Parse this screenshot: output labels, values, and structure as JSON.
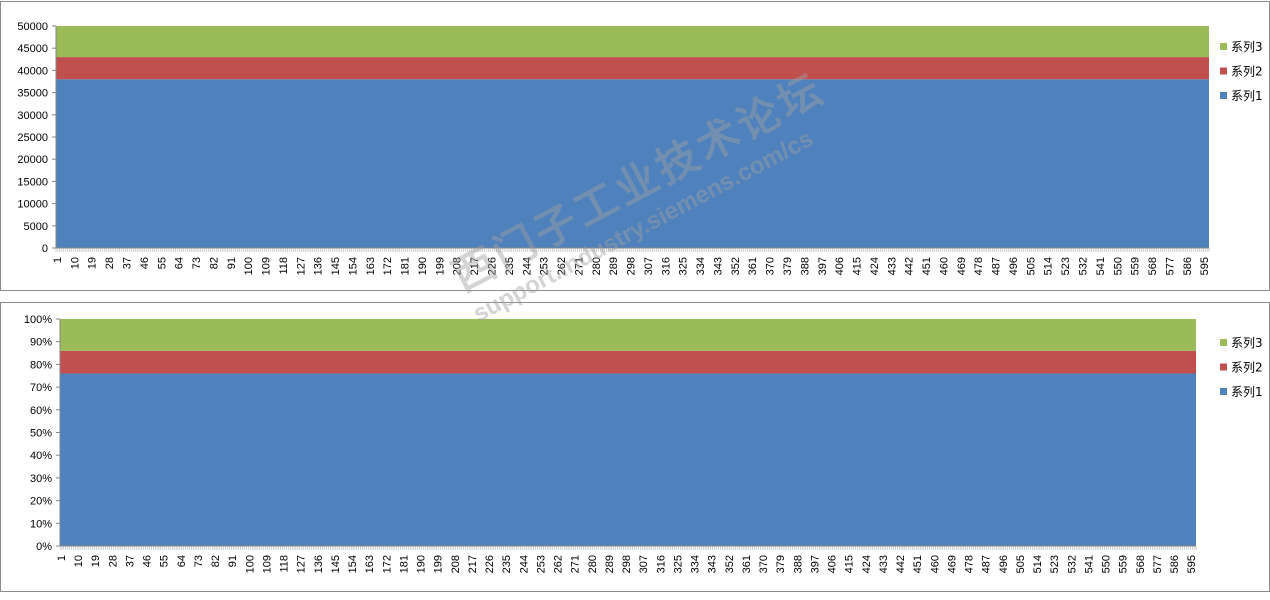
{
  "chart_data": [
    {
      "type": "area",
      "stacked": true,
      "x_range": [
        1,
        597
      ],
      "x_tick_labels": [
        "1",
        "10",
        "19",
        "28",
        "37",
        "46",
        "55",
        "64",
        "73",
        "82",
        "91",
        "100",
        "109",
        "118",
        "127",
        "136",
        "145",
        "154",
        "163",
        "172",
        "181",
        "190",
        "199",
        "208",
        "217",
        "226",
        "235",
        "244",
        "253",
        "262",
        "271",
        "280",
        "289",
        "298",
        "307",
        "316",
        "325",
        "334",
        "343",
        "352",
        "361",
        "370",
        "379",
        "388",
        "397",
        "406",
        "415",
        "424",
        "433",
        "442",
        "451",
        "460",
        "469",
        "478",
        "487",
        "496",
        "505",
        "514",
        "523",
        "532",
        "541",
        "550",
        "559",
        "568",
        "577",
        "586",
        "595"
      ],
      "ylim": [
        0,
        50000
      ],
      "y_ticks": [
        "0",
        "5000",
        "10000",
        "15000",
        "20000",
        "25000",
        "30000",
        "35000",
        "40000",
        "45000",
        "50000"
      ],
      "series": [
        {
          "name": "系列1",
          "approx_value": 38000,
          "color": "#4f81bd"
        },
        {
          "name": "系列2",
          "approx_value": 5000,
          "color": "#c0504d"
        },
        {
          "name": "系列3",
          "approx_value": 7000,
          "color": "#9bbb59"
        }
      ],
      "legend": "right",
      "grid": false
    },
    {
      "type": "area",
      "stacked": true,
      "percent": true,
      "x_range": [
        1,
        597
      ],
      "x_tick_labels": [
        "1",
        "10",
        "19",
        "28",
        "37",
        "46",
        "55",
        "64",
        "73",
        "82",
        "91",
        "100",
        "109",
        "118",
        "127",
        "136",
        "145",
        "154",
        "163",
        "172",
        "181",
        "190",
        "199",
        "208",
        "217",
        "226",
        "235",
        "244",
        "253",
        "262",
        "271",
        "280",
        "289",
        "298",
        "307",
        "316",
        "325",
        "334",
        "343",
        "352",
        "361",
        "370",
        "379",
        "388",
        "397",
        "406",
        "415",
        "424",
        "433",
        "442",
        "451",
        "460",
        "469",
        "478",
        "487",
        "496",
        "505",
        "514",
        "523",
        "532",
        "541",
        "550",
        "559",
        "568",
        "577",
        "586",
        "595"
      ],
      "ylim": [
        0,
        100
      ],
      "y_ticks": [
        "0%",
        "10%",
        "20%",
        "30%",
        "40%",
        "50%",
        "60%",
        "70%",
        "80%",
        "90%",
        "100%"
      ],
      "series": [
        {
          "name": "系列1",
          "approx_value": 76,
          "color": "#4f81bd"
        },
        {
          "name": "系列2",
          "approx_value": 10,
          "color": "#c0504d"
        },
        {
          "name": "系列3",
          "approx_value": 14,
          "color": "#9bbb59"
        }
      ],
      "legend": "right",
      "grid": false
    }
  ],
  "watermark": {
    "line1": "西门子工业技术论坛",
    "line2": "support.industry.siemens.com/cs"
  }
}
